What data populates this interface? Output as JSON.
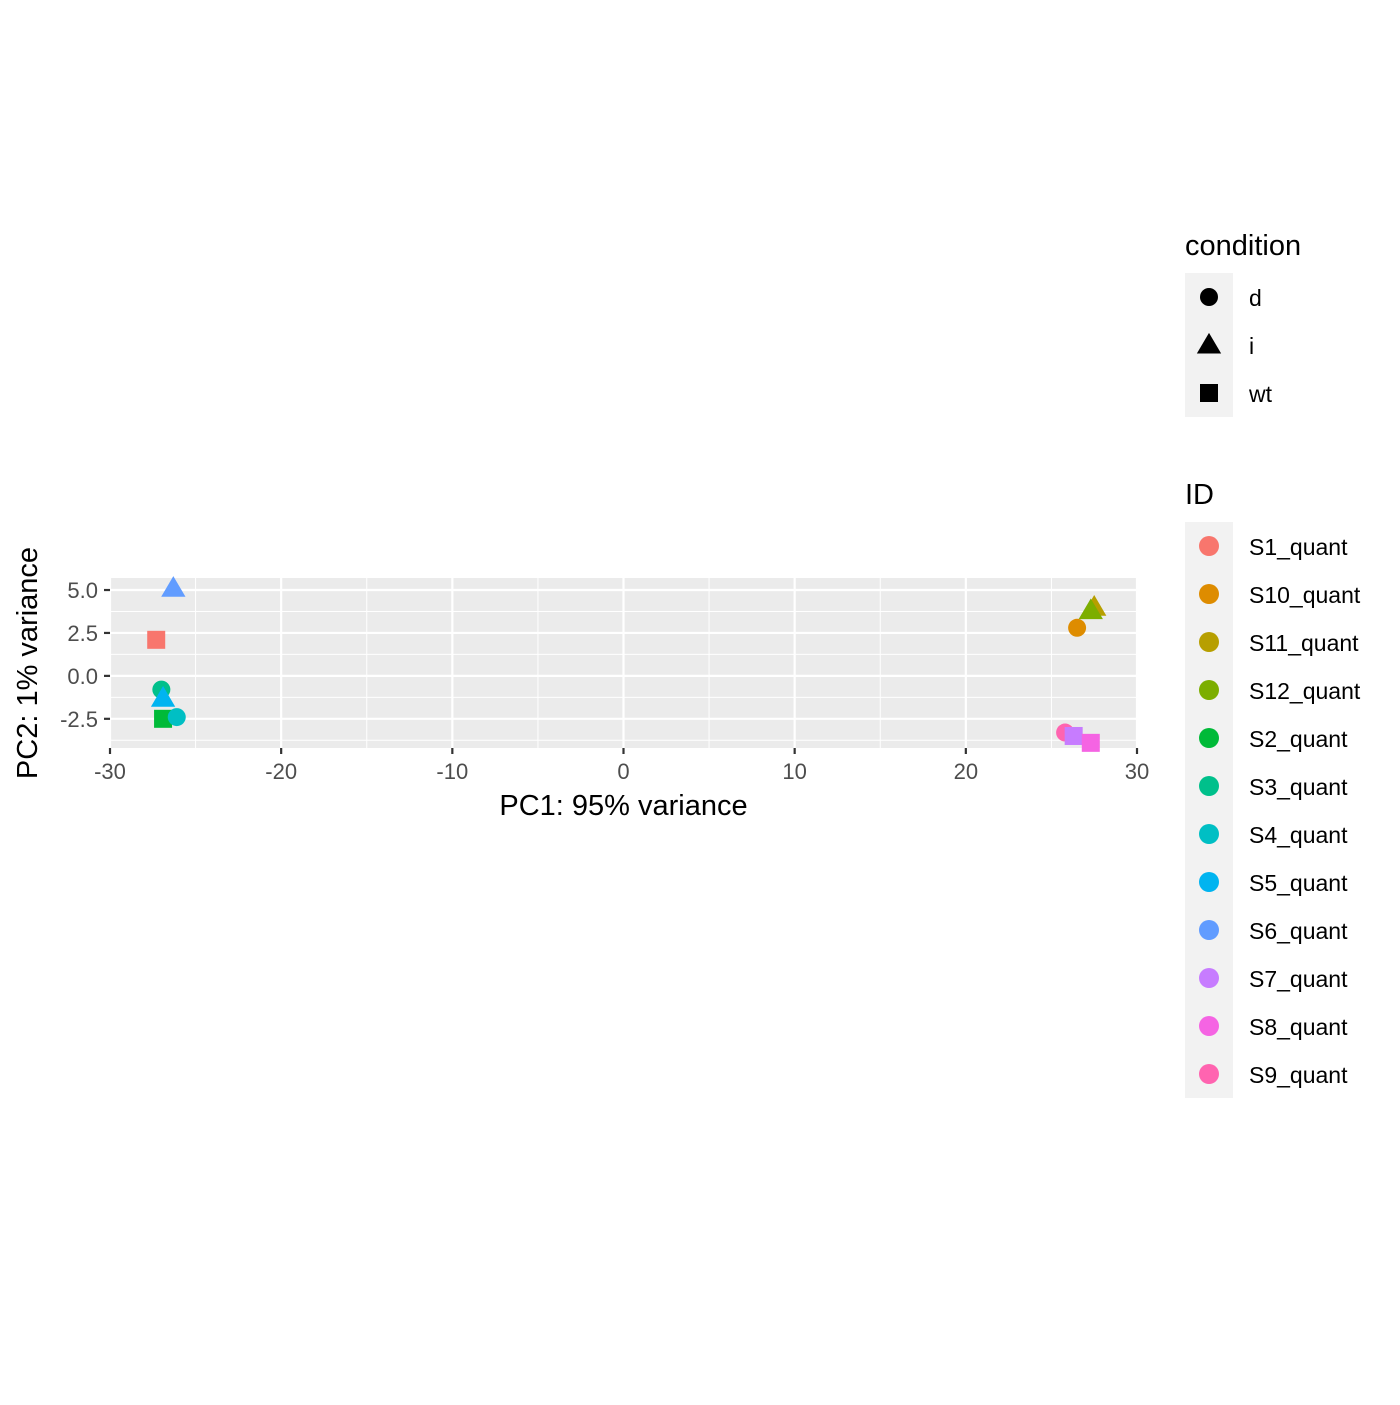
{
  "chart_data": {
    "type": "scatter",
    "title": "",
    "xlabel": "PC1: 95% variance",
    "ylabel": "PC2: 1% variance",
    "xlim": [
      -30,
      30
    ],
    "ylim": [
      -4.2,
      5.7
    ],
    "x_ticks": [
      -30,
      -20,
      -10,
      0,
      10,
      20,
      30
    ],
    "x_tick_labels": [
      "-30",
      "-20",
      "-10",
      "0",
      "10",
      "20",
      "30"
    ],
    "y_ticks": [
      -2.5,
      0.0,
      2.5,
      5.0
    ],
    "y_tick_labels": [
      "-2.5",
      "0.0",
      "2.5",
      "5.0"
    ],
    "grid": true,
    "panel_background": "#EBEBEB",
    "legend_position": "right",
    "points": [
      {
        "id": "S6_quant",
        "condition": "i",
        "x": -26.3,
        "y": 5.1
      },
      {
        "id": "S1_quant",
        "condition": "wt",
        "x": -27.3,
        "y": 2.1
      },
      {
        "id": "S3_quant",
        "condition": "d",
        "x": -27.0,
        "y": -0.8
      },
      {
        "id": "S5_quant",
        "condition": "i",
        "x": -26.9,
        "y": -1.3
      },
      {
        "id": "S2_quant",
        "condition": "wt",
        "x": -26.9,
        "y": -2.5
      },
      {
        "id": "S4_quant",
        "condition": "d",
        "x": -26.1,
        "y": -2.4
      },
      {
        "id": "S11_quant",
        "condition": "i",
        "x": 27.5,
        "y": 4.0
      },
      {
        "id": "S12_quant",
        "condition": "i",
        "x": 27.3,
        "y": 3.8
      },
      {
        "id": "S10_quant",
        "condition": "d",
        "x": 26.5,
        "y": 2.8
      },
      {
        "id": "S9_quant",
        "condition": "d",
        "x": 25.8,
        "y": -3.3
      },
      {
        "id": "S7_quant",
        "condition": "wt",
        "x": 26.3,
        "y": -3.5
      },
      {
        "id": "S8_quant",
        "condition": "wt",
        "x": 27.3,
        "y": -3.9
      }
    ],
    "legend": {
      "condition": {
        "title": "condition",
        "items": [
          {
            "label": "d",
            "shape": "circle"
          },
          {
            "label": "i",
            "shape": "triangle"
          },
          {
            "label": "wt",
            "shape": "square"
          }
        ]
      },
      "id": {
        "title": "ID",
        "items": [
          {
            "label": "S1_quant",
            "color": "#F8766D"
          },
          {
            "label": "S10_quant",
            "color": "#DE8C00"
          },
          {
            "label": "S11_quant",
            "color": "#B79F00"
          },
          {
            "label": "S12_quant",
            "color": "#7CAE00"
          },
          {
            "label": "S2_quant",
            "color": "#00BA38"
          },
          {
            "label": "S3_quant",
            "color": "#00C08B"
          },
          {
            "label": "S4_quant",
            "color": "#00BFC4"
          },
          {
            "label": "S5_quant",
            "color": "#00B4F0"
          },
          {
            "label": "S6_quant",
            "color": "#619CFF"
          },
          {
            "label": "S7_quant",
            "color": "#C77CFF"
          },
          {
            "label": "S8_quant",
            "color": "#F564E3"
          },
          {
            "label": "S9_quant",
            "color": "#FF64B0"
          }
        ]
      }
    }
  }
}
